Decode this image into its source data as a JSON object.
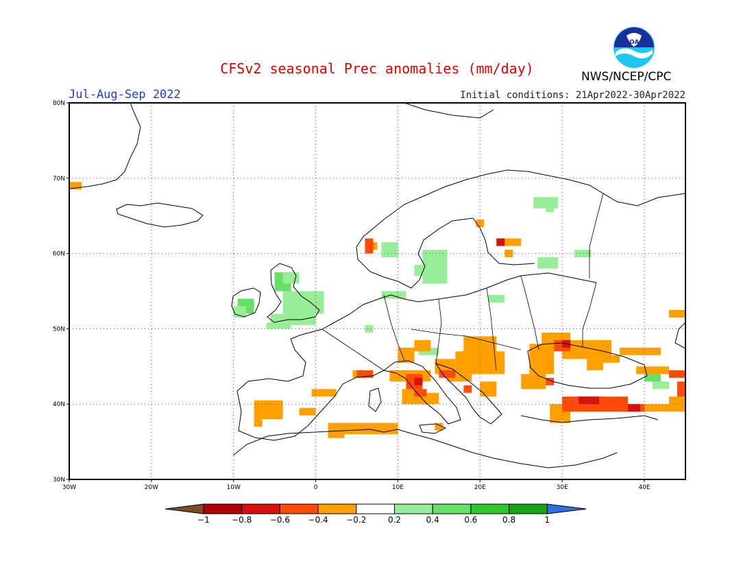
{
  "header": {
    "title": "CFSv2 seasonal Prec anomalies (mm/day)",
    "season": "Jul-Aug-Sep 2022",
    "initial_conditions": "Initial conditions: 21Apr2022-30Apr2022",
    "organization": "NWS/NCEP/CPC",
    "logo_text": "NOAA"
  },
  "map": {
    "lon_range": [
      -30,
      45
    ],
    "lat_range": [
      30,
      80
    ],
    "lat_labels": [
      "80N",
      "70N",
      "60N",
      "50N",
      "40N",
      "30N"
    ],
    "lon_labels": [
      "30W",
      "20W",
      "10W",
      "0",
      "10E",
      "20E",
      "30E",
      "40E"
    ]
  },
  "colorbar": {
    "labels": [
      "-1",
      "-0.8",
      "-0.6",
      "-0.4",
      "-0.2",
      "0.2",
      "0.4",
      "0.6",
      "0.8",
      "1"
    ],
    "colors": {
      "lt_-1": "#7a4f2e",
      "-1_-0.8": "#b00000",
      "-0.8_-0.6": "#d81010",
      "-0.6_-0.4": "#ff4b0a",
      "-0.4_-0.2": "#ffa000",
      "-0.2_0.2": "#ffffff",
      "0.2_0.4": "#98ee98",
      "0.4_0.6": "#66e066",
      "0.6_0.8": "#2ec82e",
      "0.8_1": "#16a516",
      "gt_1": "#2f6fe0"
    }
  },
  "anomaly_regions": [
    {
      "name": "Ireland",
      "level": "0.4_0.6"
    },
    {
      "name": "Scotland",
      "level": "0.4_0.6"
    },
    {
      "name": "England",
      "level": "0.2_0.4"
    },
    {
      "name": "Southern Sweden",
      "level": "0.2_0.4"
    },
    {
      "name": "Western Norway",
      "level": "-0.6_-0.4"
    },
    {
      "name": "Iberia",
      "level": "-0.4_-0.2"
    },
    {
      "name": "Italy",
      "level": "-0.6_-0.4"
    },
    {
      "name": "North Africa coast",
      "level": "-0.4_-0.2"
    },
    {
      "name": "Balkans",
      "level": "-0.4_-0.2"
    },
    {
      "name": "Ukraine / Black Sea",
      "level": "-0.4_-0.2"
    },
    {
      "name": "Turkey",
      "level": "-1_-0.8"
    },
    {
      "name": "Finland",
      "level": "0.2_0.4"
    },
    {
      "name": "Western Russia",
      "level": "0.2_0.4"
    }
  ]
}
